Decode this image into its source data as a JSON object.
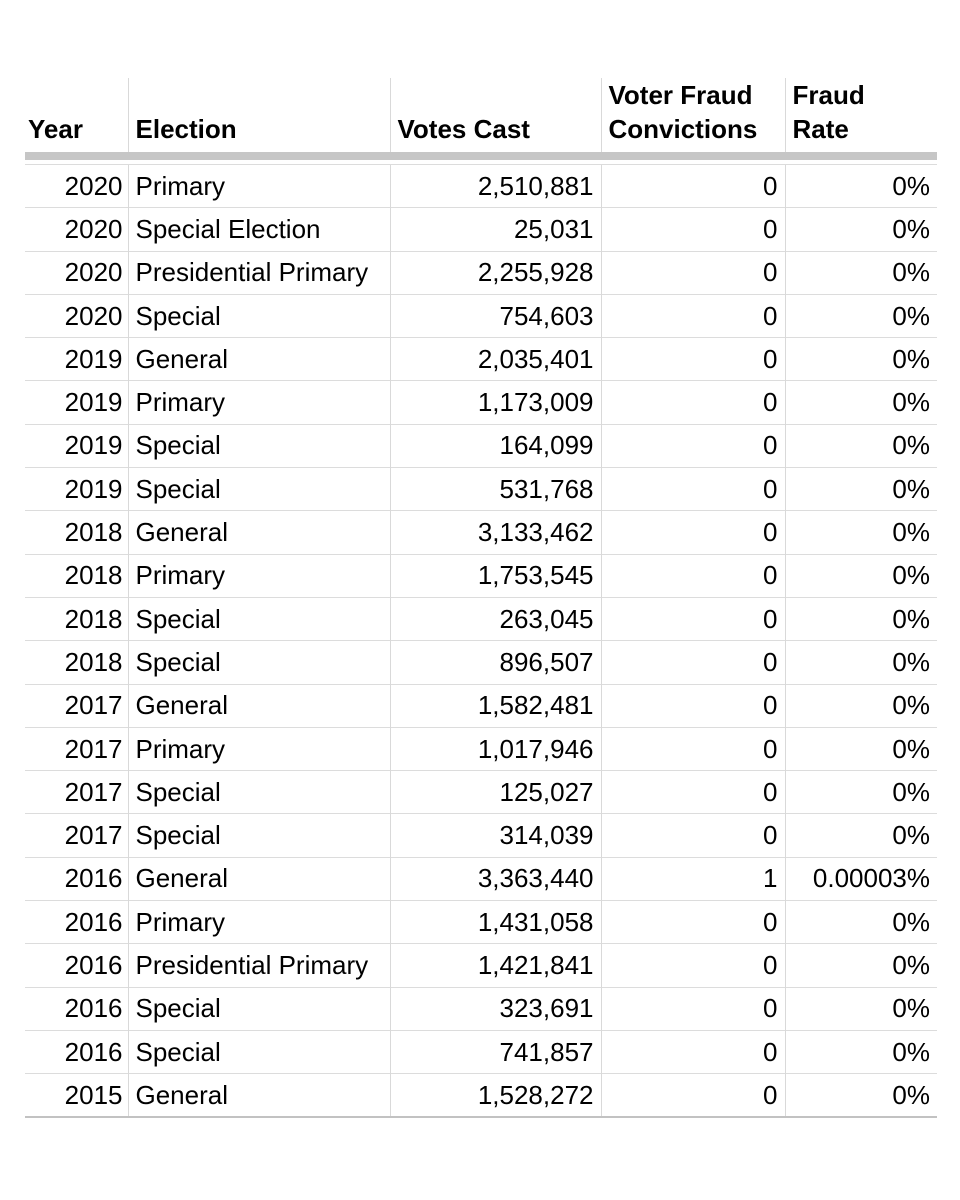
{
  "table": {
    "headers": [
      "Year",
      "Election",
      "Votes Cast",
      "Voter Fraud\nConvictions",
      "Fraud\nRate"
    ],
    "rows": [
      [
        "2020",
        "Primary",
        "2,510,881",
        "0",
        "0%"
      ],
      [
        "2020",
        "Special Election",
        "25,031",
        "0",
        "0%"
      ],
      [
        "2020",
        "Presidential Primary",
        "2,255,928",
        "0",
        "0%"
      ],
      [
        "2020",
        "Special",
        "754,603",
        "0",
        "0%"
      ],
      [
        "2019",
        "General",
        "2,035,401",
        "0",
        "0%"
      ],
      [
        "2019",
        "Primary",
        "1,173,009",
        "0",
        "0%"
      ],
      [
        "2019",
        "Special",
        "164,099",
        "0",
        "0%"
      ],
      [
        "2019",
        "Special",
        "531,768",
        "0",
        "0%"
      ],
      [
        "2018",
        "General",
        "3,133,462",
        "0",
        "0%"
      ],
      [
        "2018",
        "Primary",
        "1,753,545",
        "0",
        "0%"
      ],
      [
        "2018",
        "Special",
        "263,045",
        "0",
        "0%"
      ],
      [
        "2018",
        "Special",
        "896,507",
        "0",
        "0%"
      ],
      [
        "2017",
        "General",
        "1,582,481",
        "0",
        "0%"
      ],
      [
        "2017",
        "Primary",
        "1,017,946",
        "0",
        "0%"
      ],
      [
        "2017",
        "Special",
        "125,027",
        "0",
        "0%"
      ],
      [
        "2017",
        "Special",
        "314,039",
        "0",
        "0%"
      ],
      [
        "2016",
        "General",
        "3,363,440",
        "1",
        "0.00003%"
      ],
      [
        "2016",
        "Primary",
        "1,431,058",
        "0",
        "0%"
      ],
      [
        "2016",
        "Presidential Primary",
        "1,421,841",
        "0",
        "0%"
      ],
      [
        "2016",
        "Special",
        "323,691",
        "0",
        "0%"
      ],
      [
        "2016",
        "Special",
        "741,857",
        "0",
        "0%"
      ],
      [
        "2015",
        "General",
        "1,528,272",
        "0",
        "0%"
      ]
    ]
  },
  "colors": {
    "background": "#ffffff",
    "text": "#000000",
    "header_separator_bar": "#c6c6c6",
    "row_line": "#dcdcdc",
    "column_line": "#d9d9d9",
    "table_bottom_border": "#c2c2c2"
  }
}
